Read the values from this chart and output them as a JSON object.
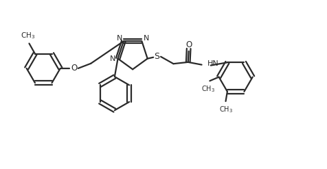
{
  "bg_color": "#ffffff",
  "line_color": "#2a2a2a",
  "line_width": 1.6,
  "fig_width": 4.76,
  "fig_height": 2.47,
  "dpi": 100,
  "xlim": [
    0,
    10
  ],
  "ylim": [
    0,
    5.2
  ]
}
